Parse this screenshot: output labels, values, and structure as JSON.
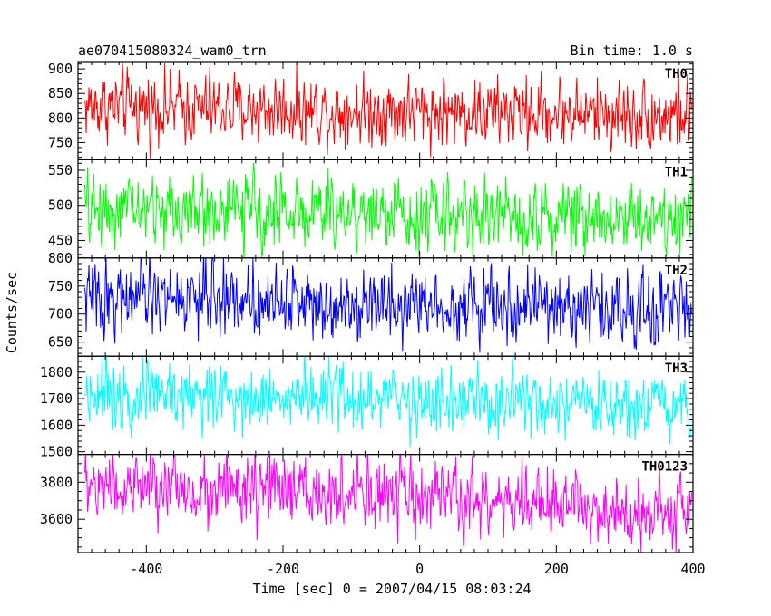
{
  "chart_data": {
    "type": "line",
    "title": "ae070415080324_wam0_trn",
    "subtitle": "Bin time: 1.0 s",
    "xlabel": "Time [sec] 0 = 2007/04/15 08:03:24",
    "ylabel": "Counts/sec",
    "xlim": [
      -500,
      400
    ],
    "x_ticks": [
      -400,
      -200,
      0,
      200,
      400
    ],
    "grid": false,
    "series": [
      {
        "name": "TH0",
        "color": "#ff0000",
        "ylim": [
          715,
          915
        ],
        "y_ticks": [
          750,
          800,
          850,
          900
        ],
        "trend": [
          [
            -500,
            825
          ],
          [
            -300,
            820
          ],
          [
            -100,
            815
          ],
          [
            100,
            812
          ],
          [
            300,
            808
          ],
          [
            400,
            805
          ]
        ],
        "spread": 55
      },
      {
        "name": "TH1",
        "color": "#00ff00",
        "ylim": [
          425,
          565
        ],
        "y_ticks": [
          450,
          500,
          550
        ],
        "trend": [
          [
            -500,
            495
          ],
          [
            -300,
            492
          ],
          [
            -100,
            490
          ],
          [
            100,
            487
          ],
          [
            300,
            485
          ],
          [
            400,
            483
          ]
        ],
        "spread": 40
      },
      {
        "name": "TH2",
        "color": "#0000ff",
        "ylim": [
          625,
          800
        ],
        "y_ticks": [
          650,
          700,
          750,
          800
        ],
        "trend": [
          [
            -500,
            730
          ],
          [
            -300,
            728
          ],
          [
            -100,
            722
          ],
          [
            100,
            715
          ],
          [
            300,
            710
          ],
          [
            400,
            705
          ]
        ],
        "spread": 50
      },
      {
        "name": "TH3",
        "color": "#00ffff",
        "ylim": [
          1490,
          1860
        ],
        "y_ticks": [
          1500,
          1600,
          1700,
          1800
        ],
        "trend": [
          [
            -500,
            1730
          ],
          [
            -300,
            1715
          ],
          [
            -100,
            1700
          ],
          [
            100,
            1680
          ],
          [
            300,
            1655
          ],
          [
            400,
            1640
          ]
        ],
        "spread": 100
      },
      {
        "name": "TH0123",
        "color": "#ff00ff",
        "ylim": [
          3420,
          3950
        ],
        "y_ticks": [
          3600,
          3800
        ],
        "trend": [
          [
            -500,
            3780
          ],
          [
            -300,
            3760
          ],
          [
            -100,
            3730
          ],
          [
            100,
            3690
          ],
          [
            300,
            3660
          ],
          [
            400,
            3630
          ]
        ],
        "spread": 150
      }
    ]
  }
}
